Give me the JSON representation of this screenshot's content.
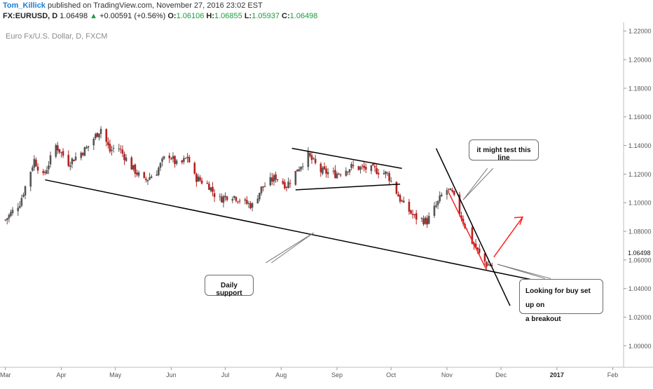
{
  "header": {
    "author": "Tom_Killick",
    "published_text": "published on TradingView.com, November 27, 2016 23:02 EST",
    "symbol": "FX:EURUSD, D",
    "last": "1.06498",
    "change_arrow": "▲",
    "change": "+0.00591 (+0.56%)",
    "o_label": "O:",
    "o_value": "1.06106",
    "h_label": "H:",
    "h_value": "1.06855",
    "l_label": "L:",
    "l_value": "1.05937",
    "c_label": "C:",
    "c_value": "1.06498"
  },
  "watermark": "Euro Fx/U.S. Dollar, D, FXCM",
  "annotations": {
    "test_line": "it might test this line",
    "daily_support": "Daily support",
    "buy_setup_1": "Looking for buy set up on",
    "buy_setup_2": "a breakout"
  },
  "chart_data": {
    "type": "candlestick",
    "instrument": "FX:EURUSD",
    "timeframe": "D",
    "price_label": "1.06498",
    "y_ticks": [
      "1.22000",
      "1.20000",
      "1.18000",
      "1.16000",
      "1.14000",
      "1.12000",
      "1.10000",
      "1.08000",
      "1.06000",
      "1.04000",
      "1.02000",
      "1.00000"
    ],
    "y_tick_values": [
      1.22,
      1.2,
      1.18,
      1.16,
      1.14,
      1.12,
      1.1,
      1.08,
      1.06,
      1.04,
      1.02,
      1.0
    ],
    "ylim": [
      0.985,
      1.226
    ],
    "x_ticks": [
      "Mar",
      "Apr",
      "May",
      "Jun",
      "Jul",
      "Aug",
      "Sep",
      "Oct",
      "Nov",
      "Dec",
      "2017",
      "Feb"
    ],
    "x_tick_bold": [
      false,
      false,
      false,
      false,
      false,
      false,
      false,
      false,
      false,
      false,
      true,
      false
    ],
    "x_range_days": [
      -3,
      343
    ],
    "x_tick_days": [
      0,
      31,
      61,
      92,
      122,
      153,
      184,
      214,
      245,
      275,
      306,
      337
    ],
    "bullish_color": "#555555",
    "bearish_color": "#b22222",
    "anchors": [
      [
        0,
        1.088
      ],
      [
        8,
        1.1
      ],
      [
        16,
        1.13
      ],
      [
        21,
        1.118
      ],
      [
        28,
        1.14
      ],
      [
        35,
        1.128
      ],
      [
        45,
        1.138
      ],
      [
        53,
        1.152
      ],
      [
        58,
        1.136
      ],
      [
        62,
        1.14
      ],
      [
        70,
        1.125
      ],
      [
        77,
        1.115
      ],
      [
        84,
        1.122
      ],
      [
        90,
        1.135
      ],
      [
        96,
        1.125
      ],
      [
        101,
        1.132
      ],
      [
        105,
        1.118
      ],
      [
        113,
        1.112
      ],
      [
        118,
        1.102
      ],
      [
        125,
        1.106
      ],
      [
        133,
        1.1
      ],
      [
        137,
        1.098
      ],
      [
        142,
        1.11
      ],
      [
        150,
        1.118
      ],
      [
        156,
        1.112
      ],
      [
        163,
        1.125
      ],
      [
        168,
        1.133
      ],
      [
        175,
        1.122
      ],
      [
        183,
        1.12
      ],
      [
        192,
        1.125
      ],
      [
        205,
        1.123
      ],
      [
        212,
        1.12
      ],
      [
        220,
        1.1
      ],
      [
        227,
        1.09
      ],
      [
        234,
        1.087
      ],
      [
        240,
        1.1
      ],
      [
        244,
        1.11
      ],
      [
        248,
        1.106
      ],
      [
        253,
        1.09
      ],
      [
        258,
        1.075
      ],
      [
        263,
        1.064
      ],
      [
        267,
        1.057
      ],
      [
        271,
        1.056
      ],
      [
        272,
        1.065
      ]
    ],
    "trendlines": [
      {
        "name": "daily-support",
        "color": "#000000",
        "points": [
          [
            22,
            1.116
          ],
          [
            293,
            1.046
          ]
        ]
      },
      {
        "name": "triangle-upper",
        "color": "#000000",
        "points": [
          [
            159,
            1.138
          ],
          [
            220,
            1.124
          ]
        ]
      },
      {
        "name": "triangle-lower",
        "color": "#000000",
        "points": [
          [
            161,
            1.109
          ],
          [
            219,
            1.113
          ]
        ]
      },
      {
        "name": "falling-resistance",
        "color": "#000000",
        "points": [
          [
            239,
            1.138
          ],
          [
            280,
            1.028
          ]
        ]
      },
      {
        "name": "projection-down",
        "color": "#ff2020",
        "points": [
          [
            246,
            1.107
          ],
          [
            267,
            1.053
          ]
        ]
      },
      {
        "name": "projection-up",
        "color": "#ff2020",
        "points": [
          [
            271,
            1.062
          ],
          [
            287,
            1.09
          ]
        ]
      }
    ],
    "callouts": [
      {
        "name": "test-line-callout",
        "from": [
          254,
          1.102
        ],
        "to": [
          269,
          1.124
        ]
      },
      {
        "name": "daily-support-callout",
        "from": [
          171,
          1.079
        ],
        "to": [
          146,
          1.058
        ]
      },
      {
        "name": "buy-callout",
        "from": [
          273,
          1.057
        ],
        "to": [
          301,
          1.047
        ]
      }
    ],
    "grid": false,
    "legend": "none"
  }
}
